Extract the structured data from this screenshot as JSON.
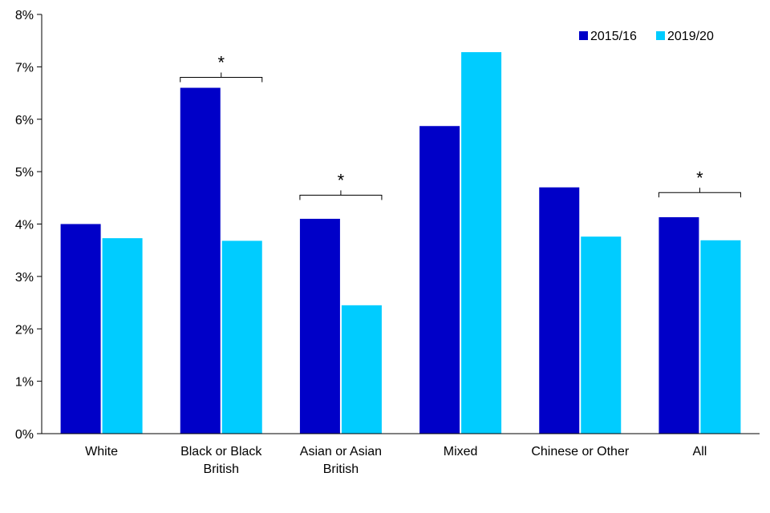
{
  "chart_data": {
    "type": "bar",
    "title": "",
    "xlabel": "",
    "ylabel": "",
    "categories": [
      [
        "White"
      ],
      [
        "Black or Black",
        "British"
      ],
      [
        "Asian or Asian",
        "British"
      ],
      [
        "Mixed"
      ],
      [
        "Chinese or Other"
      ],
      [
        "All"
      ]
    ],
    "series": [
      {
        "name": "2015/16",
        "color": "#0000C8",
        "values": [
          4.0,
          6.6,
          4.1,
          5.87,
          4.7,
          4.13
        ]
      },
      {
        "name": "2019/20",
        "color": "#00CCFF",
        "values": [
          3.73,
          3.68,
          2.45,
          7.28,
          3.76,
          3.69
        ]
      }
    ],
    "ylim": [
      0,
      8
    ],
    "yticks": [
      0,
      1,
      2,
      3,
      4,
      5,
      6,
      7,
      8
    ],
    "ytick_labels": [
      "0%",
      "1%",
      "2%",
      "3%",
      "4%",
      "5%",
      "6%",
      "7%",
      "8%"
    ],
    "grid": false,
    "legend_position": "top-right",
    "significance": [
      {
        "category_index": 1,
        "label": "*",
        "bracket_value": 6.8
      },
      {
        "category_index": 2,
        "label": "*",
        "bracket_value": 4.55
      },
      {
        "category_index": 5,
        "label": "*",
        "bracket_value": 4.6
      }
    ]
  }
}
